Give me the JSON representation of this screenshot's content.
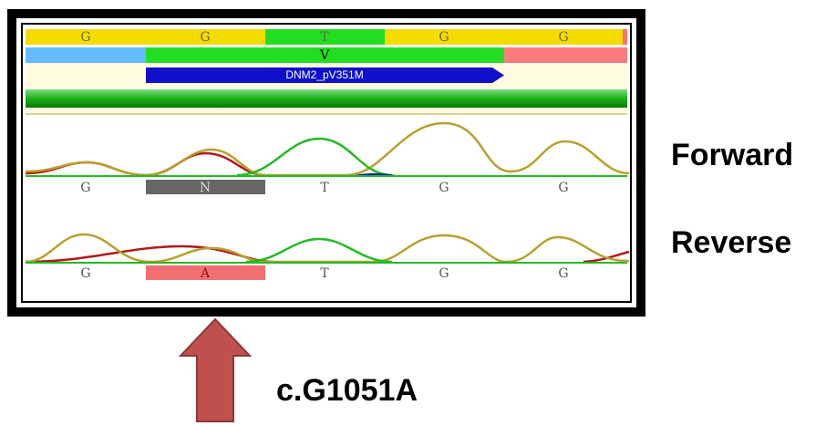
{
  "reference": {
    "bases": [
      "G",
      "G",
      "T",
      "G",
      "G"
    ],
    "amino_acid": "V",
    "feature": "DNM2_pV351M"
  },
  "forward": {
    "label": "Forward",
    "bases": [
      "G",
      "N",
      "T",
      "G",
      "G"
    ]
  },
  "reverse": {
    "label": "Reverse",
    "bases": [
      "G",
      "A",
      "T",
      "G",
      "G"
    ]
  },
  "mutation": "c.G1051A"
}
